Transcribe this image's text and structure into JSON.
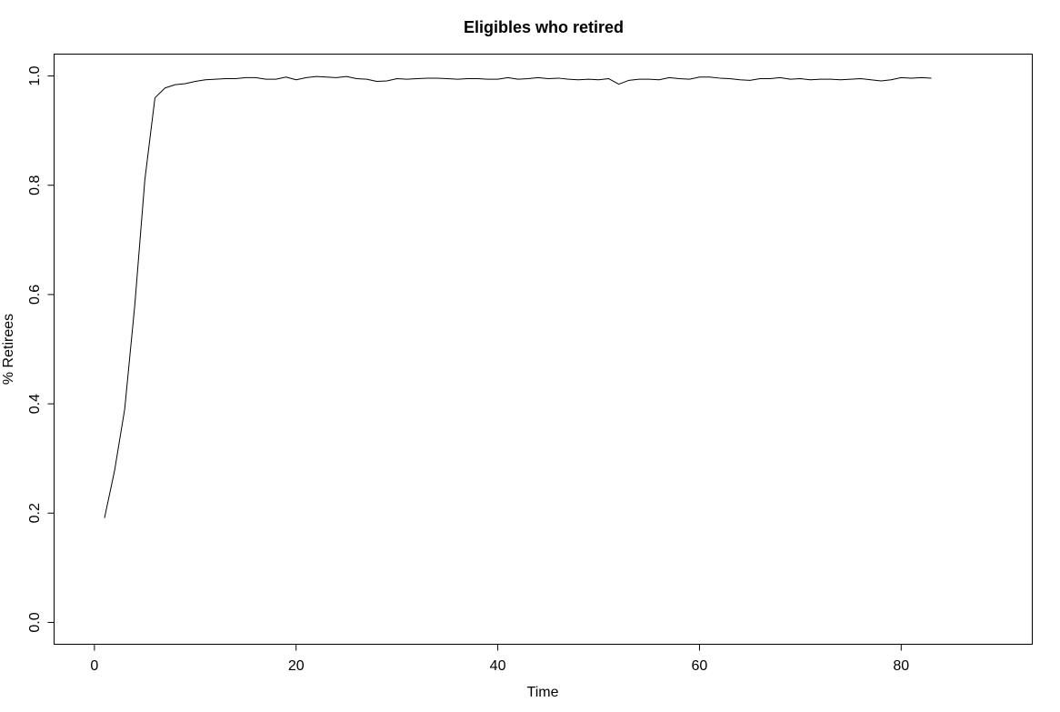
{
  "chart_data": {
    "type": "line",
    "title": "Eligibles who retired",
    "xlabel": "Time",
    "ylabel": "% Retirees",
    "xlim": [
      -4,
      93
    ],
    "ylim": [
      -0.04,
      1.04
    ],
    "x_ticks": [
      0,
      20,
      40,
      60,
      80
    ],
    "x_tick_labels": [
      "0",
      "20",
      "40",
      "60",
      "80"
    ],
    "y_ticks": [
      0.0,
      0.2,
      0.4,
      0.6,
      0.8,
      1.0
    ],
    "y_tick_labels": [
      "0.0",
      "0.2",
      "0.4",
      "0.6",
      "0.8",
      "1.0"
    ],
    "grid": false,
    "series": [
      {
        "x": [
          1,
          2,
          3,
          4,
          5,
          6,
          7,
          8,
          9,
          10,
          11,
          12,
          13,
          14,
          15,
          16,
          17,
          18,
          19,
          20,
          21,
          22,
          23,
          24,
          25,
          26,
          27,
          28,
          29,
          30,
          31,
          32,
          33,
          34,
          35,
          36,
          37,
          38,
          39,
          40,
          41,
          42,
          43,
          44,
          45,
          46,
          47,
          48,
          49,
          50,
          51,
          52,
          53,
          54,
          55,
          56,
          57,
          58,
          59,
          60,
          61,
          62,
          63,
          64,
          65,
          66,
          67,
          68,
          69,
          70,
          71,
          72,
          73,
          74,
          75,
          76,
          77,
          78,
          79,
          80,
          81,
          82,
          83
        ],
        "values": [
          0.191,
          0.278,
          0.39,
          0.58,
          0.81,
          0.96,
          0.978,
          0.984,
          0.986,
          0.99,
          0.993,
          0.994,
          0.995,
          0.995,
          0.997,
          0.997,
          0.994,
          0.994,
          0.998,
          0.993,
          0.997,
          0.999,
          0.998,
          0.997,
          0.999,
          0.995,
          0.994,
          0.99,
          0.991,
          0.995,
          0.994,
          0.995,
          0.996,
          0.996,
          0.995,
          0.994,
          0.995,
          0.995,
          0.994,
          0.994,
          0.997,
          0.994,
          0.995,
          0.997,
          0.995,
          0.996,
          0.994,
          0.993,
          0.994,
          0.993,
          0.995,
          0.985,
          0.992,
          0.994,
          0.994,
          0.993,
          0.997,
          0.995,
          0.994,
          0.998,
          0.998,
          0.996,
          0.995,
          0.993,
          0.992,
          0.995,
          0.995,
          0.997,
          0.994,
          0.995,
          0.993,
          0.994,
          0.994,
          0.993,
          0.994,
          0.995,
          0.993,
          0.991,
          0.993,
          0.997,
          0.996,
          0.997,
          0.996
        ]
      }
    ]
  }
}
